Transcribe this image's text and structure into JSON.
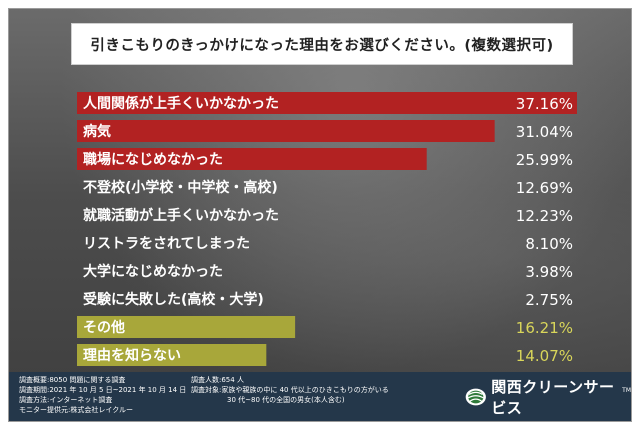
{
  "title": "引きこもりのきっかけになった理由をお選びください。(複数選択可)",
  "colors": {
    "highlight_red": "#b22222",
    "highlight_olive": "#a8a73a",
    "default_bar": "#ffffff"
  },
  "chart_data": {
    "type": "bar",
    "orientation": "horizontal",
    "categories": [
      "人間関係が上手くいかなかった",
      "病気",
      "職場になじめなかった",
      "不登校(小学校・中学校・高校)",
      "就職活動が上手くいかなかった",
      "リストラをされてしまった",
      "大学になじめなかった",
      "受験に失敗した(高校・大学)",
      "その他",
      "理由を知らない"
    ],
    "values": [
      37.16,
      31.04,
      25.99,
      12.69,
      12.23,
      8.1,
      3.98,
      2.75,
      16.21,
      14.07
    ],
    "value_labels": [
      "37.16%",
      "31.04%",
      "25.99%",
      "12.69%",
      "12.23%",
      "8.10%",
      "3.98%",
      "2.75%",
      "16.21%",
      "14.07%"
    ],
    "highlight": [
      "red",
      "red",
      "red",
      "none",
      "none",
      "none",
      "none",
      "none",
      "olive",
      "olive"
    ],
    "xlim": [
      0,
      37.16
    ]
  },
  "footer": {
    "survey_overview": "調査概要:8050 問題に関する調査",
    "survey_period": "調査期間:2021 年 10 月 5 日~2021 年 10 月 14 日",
    "survey_method": "調査方法:インターネット調査",
    "monitor_provider": "モニター提供元:株式会社レイクルー",
    "survey_count": "調査人数:654 人",
    "survey_target_1": "調査対象:家族や親族の中に 40 代以上のひきこもりの方がいる",
    "survey_target_2": "30 代~80 代の全国の男女(本人含む)",
    "logo_text": "関西クリーンサービス",
    "logo_tm": "TM"
  }
}
